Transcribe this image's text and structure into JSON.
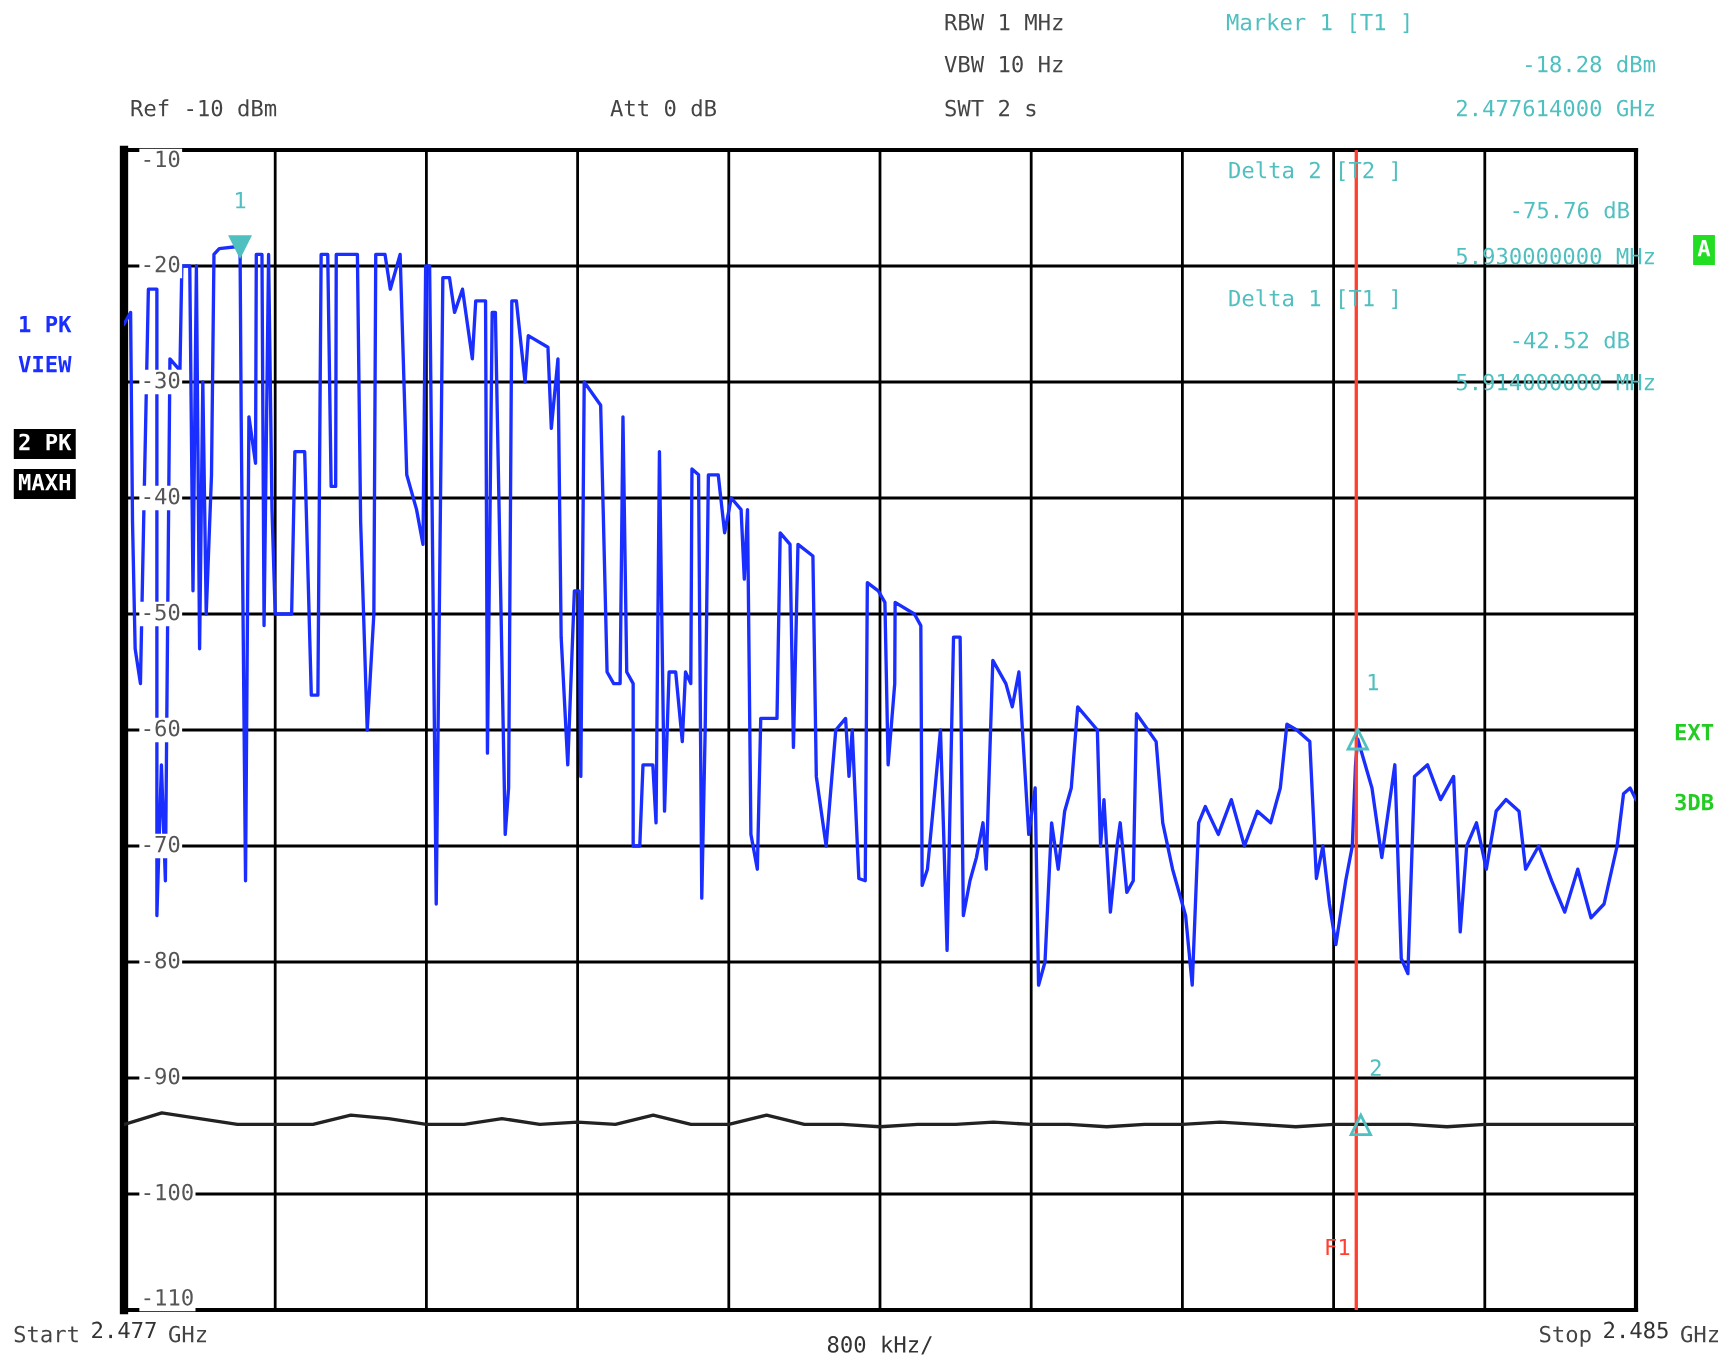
{
  "chart_data": {
    "type": "line",
    "xlabel": "800 kHz/",
    "xlim": [
      2.477,
      2.485
    ],
    "xticks": [
      {
        "value": 2.477,
        "label": "2.477"
      },
      {
        "value": 2.4778,
        "label": null
      },
      {
        "value": 2.4786,
        "label": null
      },
      {
        "value": 2.4794,
        "label": null
      },
      {
        "value": 2.4802,
        "label": null
      },
      {
        "value": 2.481,
        "label": null
      },
      {
        "value": 2.4818,
        "label": null
      },
      {
        "value": 2.4826,
        "label": null
      },
      {
        "value": 2.4834,
        "label": null
      },
      {
        "value": 2.4842,
        "label": null
      },
      {
        "value": 2.485,
        "label": "2.485"
      }
    ],
    "ylim": [
      -110,
      -10
    ],
    "yticks": [
      -10,
      -20,
      -30,
      -40,
      -50,
      -60,
      -70,
      -80,
      -90,
      -100,
      -110
    ],
    "grid": true,
    "marker": "none",
    "line_style": "solid",
    "ref_lines": [
      {
        "axis": "x",
        "value": 2.48352,
        "label": "F1",
        "color": "#ff4030"
      }
    ],
    "series": [
      {
        "color": "#1a2eff",
        "x": [
          2.477,
          2.477035,
          2.477045,
          2.477059,
          2.477087,
          2.477104,
          2.477129,
          2.477174,
          2.477174,
          2.477198,
          2.477219,
          2.477243,
          2.477296,
          2.477306,
          2.477348,
          2.477365,
          2.477383,
          2.4774,
          2.477417,
          2.477435,
          2.477463,
          2.477476,
          2.477504,
          2.477614,
          2.47762,
          2.477643,
          2.477661,
          2.477696,
          2.4777,
          2.47773,
          2.477741,
          2.477765,
          2.477783,
          2.4778,
          2.477887,
          2.477904,
          2.477956,
          2.477991,
          2.478026,
          2.478043,
          2.478078,
          2.478096,
          2.47812,
          2.478123,
          2.478235,
          2.478252,
          2.478287,
          2.478322,
          2.478332,
          2.478381,
          2.478409,
          2.478461,
          2.478496,
          2.478548,
          2.478582,
          2.478596,
          2.478617,
          2.478652,
          2.478687,
          2.478722,
          2.478749,
          2.478791,
          2.478843,
          2.478861,
          2.478913,
          2.478923,
          2.478948,
          2.478965,
          2.479017,
          2.479035,
          2.479052,
          2.479076,
          2.479122,
          2.479139,
          2.479243,
          2.479261,
          2.479296,
          2.479313,
          2.479348,
          2.479383,
          2.479407,
          2.479417,
          2.479435,
          2.479522,
          2.479556,
          2.479591,
          2.479625,
          2.47964,
          2.47966,
          2.479694,
          2.479694,
          2.479729,
          2.479746,
          2.479798,
          2.479815,
          2.479833,
          2.47986,
          2.479884,
          2.479919,
          2.479954,
          2.479971,
          2.479999,
          2.480005,
          2.48004,
          2.480057,
          2.480075,
          2.480092,
          2.480144,
          2.480178,
          2.480213,
          2.480265,
          2.480282,
          2.480299,
          2.480317,
          2.480351,
          2.480369,
          2.480455,
          2.480472,
          2.480524,
          2.480542,
          2.480566,
          2.480645,
          2.480663,
          2.480715,
          2.480766,
          2.480818,
          2.480836,
          2.480853,
          2.480888,
          2.480922,
          2.480933,
          2.480991,
          2.481026,
          2.481043,
          2.481078,
          2.48108,
          2.481182,
          2.481216,
          2.481223,
          2.481251,
          2.481303,
          2.48132,
          2.481337,
          2.481355,
          2.481389,
          2.481424,
          2.481441,
          2.481476,
          2.48151,
          2.481545,
          2.481562,
          2.481579,
          2.481597,
          2.481666,
          2.4817,
          2.481735,
          2.481787,
          2.481821,
          2.481839,
          2.481873,
          2.481908,
          2.481943,
          2.481977,
          2.482012,
          2.482046,
          2.48215,
          2.482167,
          2.482185,
          2.482219,
          2.482254,
          2.482271,
          2.482306,
          2.48234,
          2.482357,
          2.482375,
          2.482461,
          2.482496,
          2.482548,
          2.482617,
          2.482652,
          2.482686,
          2.482721,
          2.48279,
          2.482859,
          2.482928,
          2.482997,
          2.483067,
          2.483118,
          2.483153,
          2.483205,
          2.483274,
          2.483309,
          2.483343,
          2.483378,
          2.483412,
          2.483464,
          2.483499,
          2.483516,
          2.483528,
          2.483603,
          2.483655,
          2.483724,
          2.483758,
          2.483793,
          2.483828,
          2.483897,
          2.483966,
          2.484035,
          2.48407,
          2.484104,
          2.484156,
          2.484208,
          2.48426,
          2.484312,
          2.484381,
          2.484416,
          2.484485,
          2.484554,
          2.484623,
          2.484692,
          2.484762,
          2.484831,
          2.4849,
          2.484934,
          2.484969,
          2.485
        ],
        "values": [
          -25,
          -24,
          -42,
          -53,
          -56,
          -42,
          -22,
          -22,
          -76,
          -63,
          -73,
          -28,
          -29,
          -20,
          -20,
          -48,
          -20,
          -53,
          -30,
          -50,
          -38,
          -19,
          -18.5,
          -18.3,
          -33,
          -73,
          -33,
          -37,
          -19,
          -19,
          -51,
          -19,
          -41,
          -50,
          -50,
          -36,
          -36,
          -57,
          -57,
          -19,
          -19,
          -39,
          -39,
          -19,
          -19,
          -42,
          -60,
          -50,
          -19,
          -19,
          -22,
          -19,
          -38,
          -41,
          -44,
          -20,
          -20,
          -75,
          -21,
          -21,
          -24,
          -22,
          -28,
          -23,
          -23,
          -62,
          -24,
          -24,
          -69,
          -65,
          -23,
          -23,
          -30,
          -26,
          -27,
          -34,
          -28,
          -52,
          -63,
          -48,
          -48,
          -64,
          -30,
          -32,
          -55,
          -56,
          -56,
          -33,
          -55,
          -56,
          -70,
          -70,
          -63,
          -63,
          -68,
          -36,
          -67,
          -55,
          -55,
          -61,
          -55,
          -56,
          -37.5,
          -38,
          -74.5,
          -60,
          -38,
          -38,
          -43,
          -40,
          -41,
          -47,
          -41,
          -69,
          -72,
          -59,
          -59,
          -43,
          -44,
          -61.5,
          -44,
          -45,
          -64,
          -70,
          -60,
          -59,
          -64,
          -60,
          -72.8,
          -73,
          -47.3,
          -48,
          -49,
          -63,
          -56,
          -49,
          -50,
          -51,
          -73.4,
          -72,
          -63,
          -60,
          -69,
          -79,
          -52,
          -52,
          -76,
          -73,
          -71,
          -68,
          -72,
          -63,
          -54,
          -56,
          -58,
          -55,
          -69,
          -65,
          -82,
          -80,
          -68,
          -72,
          -67,
          -65,
          -58,
          -60,
          -70,
          -66,
          -75.7,
          -70,
          -68,
          -74,
          -73,
          -58.6,
          -59,
          -61,
          -68,
          -72,
          -76,
          -82,
          -68,
          -66.6,
          -69,
          -66,
          -70,
          -67,
          -68,
          -65,
          -59.5,
          -60,
          -61,
          -72.8,
          -70,
          -75,
          -78.5,
          -73,
          -70,
          -63,
          -60.8,
          -65,
          -71,
          -63,
          -79.7,
          -81,
          -64,
          -63,
          -66,
          -64,
          -77.4,
          -70,
          -68,
          -72,
          -67,
          -66,
          -67,
          -72,
          -70,
          -73,
          -75.7,
          -72,
          -76.2,
          -75,
          -70,
          -65.5,
          -65,
          -66
        ]
      },
      {
        "color": "#222222",
        "x": [
          2.477,
          2.4772,
          2.4774,
          2.4776,
          2.4778,
          2.478,
          2.4782,
          2.4784,
          2.4786,
          2.4788,
          2.479,
          2.4792,
          2.4794,
          2.4796,
          2.4798,
          2.48,
          2.4802,
          2.4804,
          2.4806,
          2.4808,
          2.481,
          2.4812,
          2.4814,
          2.4816,
          2.4818,
          2.482,
          2.4822,
          2.4824,
          2.4826,
          2.4828,
          2.483,
          2.4832,
          2.4834,
          2.4836,
          2.4838,
          2.484,
          2.4842,
          2.4844,
          2.4846,
          2.4848,
          2.485
        ],
        "values": [
          -94,
          -93,
          -93.5,
          -94,
          -94,
          -94,
          -93.2,
          -93.5,
          -94,
          -94,
          -93.5,
          -94,
          -93.8,
          -94,
          -93.2,
          -94,
          -94,
          -93.2,
          -94,
          -94,
          -94.2,
          -94,
          -94,
          -93.8,
          -94,
          -94,
          -94.2,
          -94,
          -94,
          -93.8,
          -94,
          -94.2,
          -94,
          -94,
          -94,
          -94.2,
          -94,
          -94,
          -94,
          -94,
          -94
        ]
      }
    ],
    "annotations": [
      "Ref -10 dBm",
      "Att 0 dB",
      "RBW 1 MHz",
      "VBW 10 Hz",
      "SWT 2 s",
      "Marker 1 [T1 ]",
      "-18.28 dBm",
      "2.477614000 GHz",
      "Delta 2 [T2 ]",
      "-75.76 dB",
      "5.930000000 MHz",
      "Delta 1 [T1 ]",
      "-42.52 dB",
      "5.914000000 MHz",
      "1 PK",
      "VIEW",
      "2 PK",
      "MAXH",
      "EXT",
      "3DB",
      "A",
      "Start",
      "GHz",
      "Stop",
      "GHz",
      {
        "text": "1",
        "x": 2.477614,
        "y": -18.3
      },
      {
        "text": "1",
        "x": 2.483528,
        "y": -60.8
      },
      {
        "text": "2",
        "x": 2.483544,
        "y": -94.04
      }
    ]
  }
}
